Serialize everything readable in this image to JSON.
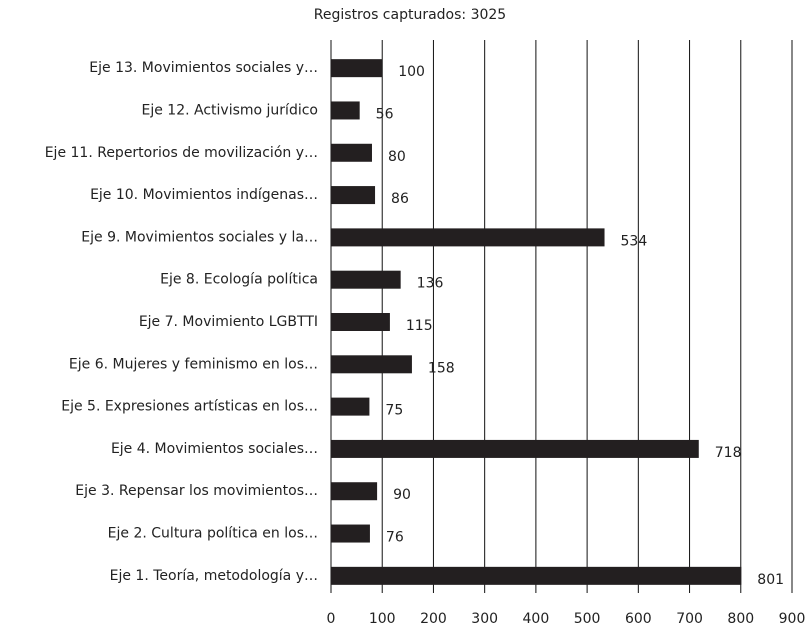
{
  "chart_data": {
    "type": "bar",
    "orientation": "horizontal",
    "title": "Registros capturados: 3025",
    "categories": [
      "Eje 13. Movimientos sociales y…",
      "Eje 12.  Activismo jurídico",
      "Eje 11. Repertorios de movilización y…",
      "Eje 10. Movimientos indígenas…",
      "Eje 9. Movimientos sociales y la…",
      "Eje 8. Ecología política",
      "Eje 7. Movimiento LGBTTI",
      "Eje 6. Mujeres y feminismo en los…",
      "Eje 5. Expresiones artísticas en los…",
      "Eje 4. Movimientos sociales…",
      "Eje 3. Repensar los movimientos…",
      "Eje 2. Cultura política en los…",
      "Eje 1. Teoría, metodología y…"
    ],
    "values": [
      100,
      56,
      80,
      86,
      534,
      136,
      115,
      158,
      75,
      718,
      90,
      76,
      801
    ],
    "color": "#231f20",
    "xlim": [
      0,
      900
    ],
    "xticks": [
      0,
      100,
      200,
      300,
      400,
      500,
      600,
      700,
      800,
      900
    ],
    "grid": true
  }
}
